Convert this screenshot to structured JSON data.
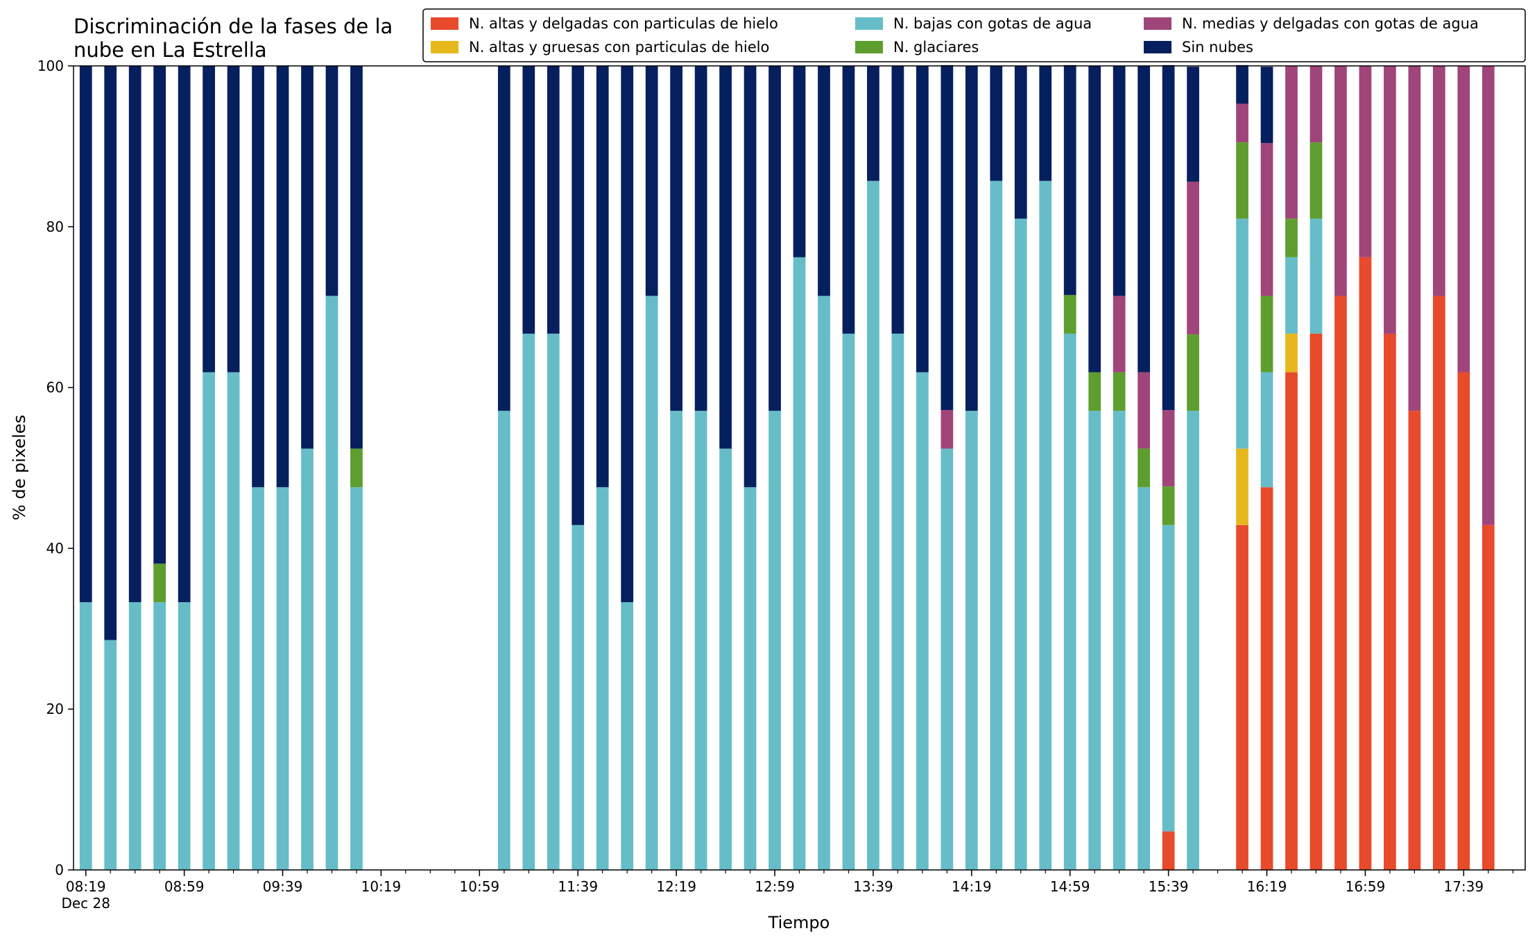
{
  "chart_data": {
    "type": "bar",
    "stacked": true,
    "title": "Discriminación de la fases de la\nnube en La Estrella",
    "xlabel": "Tiempo",
    "ylabel": "% de pixeles",
    "ylim": [
      0,
      100
    ],
    "yticks": [
      0,
      20,
      40,
      60,
      80,
      100
    ],
    "grid": false,
    "legend_position": "top-right",
    "x_interval_minutes": 10,
    "xlim": [
      "08:14",
      "18:04"
    ],
    "xtick_labels": [
      "08:19",
      "08:59",
      "09:39",
      "10:19",
      "10:59",
      "11:39",
      "12:19",
      "12:59",
      "13:39",
      "14:19",
      "14:59",
      "15:39",
      "16:19",
      "16:59",
      "17:39"
    ],
    "xtick_date": "Dec 28",
    "categories": [
      "08:19",
      "08:29",
      "08:39",
      "08:49",
      "08:59",
      "09:09",
      "09:19",
      "09:29",
      "09:39",
      "09:49",
      "09:59",
      "10:09",
      "10:19",
      "10:29",
      "10:39",
      "10:49",
      "10:59",
      "11:09",
      "11:19",
      "11:29",
      "11:39",
      "11:49",
      "11:59",
      "12:09",
      "12:19",
      "12:29",
      "12:39",
      "12:49",
      "12:59",
      "13:09",
      "13:19",
      "13:29",
      "13:39",
      "13:49",
      "13:59",
      "14:09",
      "14:19",
      "14:29",
      "14:39",
      "14:49",
      "14:59",
      "15:09",
      "15:19",
      "15:29",
      "15:39",
      "15:49",
      "15:59",
      "16:09",
      "16:19",
      "16:29",
      "16:39",
      "16:49",
      "16:59",
      "17:09",
      "17:19",
      "17:29",
      "17:39",
      "17:49"
    ],
    "series": [
      {
        "name": "N. altas y delgadas con particulas de hielo",
        "color": "#e84a2c",
        "values": [
          0,
          0,
          0,
          0,
          0,
          0,
          0,
          0,
          0,
          0,
          0,
          0,
          0,
          0,
          0,
          0,
          0,
          0,
          0,
          0,
          0,
          0,
          0,
          0,
          0,
          0,
          0,
          0,
          0,
          0,
          0,
          0,
          0,
          0,
          0,
          0,
          0,
          0,
          0,
          0,
          0,
          0,
          0,
          0,
          4.8,
          0,
          0,
          42.9,
          47.6,
          61.9,
          66.7,
          71.4,
          76.2,
          66.7,
          57.1,
          71.4,
          61.9,
          42.9
        ]
      },
      {
        "name": "N. altas y gruesas con particulas de hielo",
        "color": "#e6b81b",
        "values": [
          0,
          0,
          0,
          0,
          0,
          0,
          0,
          0,
          0,
          0,
          0,
          0,
          0,
          0,
          0,
          0,
          0,
          0,
          0,
          0,
          0,
          0,
          0,
          0,
          0,
          0,
          0,
          0,
          0,
          0,
          0,
          0,
          0,
          0,
          0,
          0,
          0,
          0,
          0,
          0,
          0,
          0,
          0,
          0,
          0,
          0,
          0,
          9.5,
          0,
          4.8,
          0,
          0,
          0,
          0,
          0,
          0,
          0,
          0
        ]
      },
      {
        "name": "N. bajas con gotas de agua",
        "color": "#66bdc8",
        "values": [
          33.3,
          28.6,
          33.3,
          33.3,
          33.3,
          61.9,
          61.9,
          47.6,
          47.6,
          52.4,
          71.4,
          47.6,
          0,
          0,
          0,
          0,
          0,
          57.1,
          66.7,
          66.7,
          42.9,
          47.6,
          33.3,
          71.4,
          57.1,
          57.1,
          52.4,
          47.6,
          57.1,
          76.2,
          71.4,
          66.7,
          85.7,
          66.7,
          61.9,
          52.4,
          57.1,
          85.7,
          81.0,
          85.7,
          66.7,
          57.1,
          57.1,
          47.6,
          38.1,
          57.1,
          0,
          28.6,
          14.3,
          9.5,
          14.3,
          0,
          0,
          0,
          0,
          0,
          0,
          0
        ]
      },
      {
        "name": "N. glaciares",
        "color": "#5d9e2e",
        "values": [
          0,
          0,
          0,
          4.8,
          0,
          0,
          0,
          0,
          0,
          0,
          0,
          4.8,
          0,
          0,
          0,
          0,
          0,
          0,
          0,
          0,
          0,
          0,
          0,
          0,
          0,
          0,
          0,
          0,
          0,
          0,
          0,
          0,
          0,
          0,
          0,
          0,
          0,
          0,
          0,
          0,
          4.8,
          4.8,
          4.8,
          4.8,
          4.8,
          9.5,
          0,
          9.5,
          9.5,
          4.8,
          9.5,
          0,
          0,
          0,
          0,
          0,
          0,
          0
        ]
      },
      {
        "name": "N. medias y delgadas con gotas de agua",
        "color": "#a0457a",
        "values": [
          0,
          0,
          0,
          0,
          0,
          0,
          0,
          0,
          0,
          0,
          0,
          0,
          0,
          0,
          0,
          0,
          0,
          0,
          0,
          0,
          0,
          0,
          0,
          0,
          0,
          0,
          0,
          0,
          0,
          0,
          0,
          0,
          0,
          0,
          0,
          4.8,
          0,
          0,
          0,
          0,
          0,
          0,
          9.5,
          9.5,
          9.5,
          19.0,
          0,
          4.8,
          19.0,
          19.0,
          9.5,
          28.6,
          23.8,
          33.3,
          42.9,
          28.6,
          38.1,
          57.1
        ]
      },
      {
        "name": "Sin nubes",
        "color": "#061f5e",
        "values": [
          66.7,
          71.4,
          66.7,
          61.9,
          66.7,
          38.1,
          38.1,
          52.4,
          52.4,
          47.6,
          28.6,
          47.6,
          0,
          0,
          0,
          0,
          0,
          42.9,
          33.3,
          33.3,
          57.1,
          52.4,
          66.7,
          28.6,
          42.9,
          42.9,
          47.6,
          52.4,
          42.9,
          23.8,
          28.6,
          33.3,
          14.3,
          33.3,
          38.1,
          42.9,
          42.9,
          14.3,
          19.0,
          14.3,
          28.6,
          38.1,
          28.6,
          38.1,
          42.9,
          14.3,
          0,
          4.8,
          9.5,
          0,
          0,
          0,
          0,
          0,
          0,
          0,
          0,
          0
        ]
      }
    ]
  }
}
